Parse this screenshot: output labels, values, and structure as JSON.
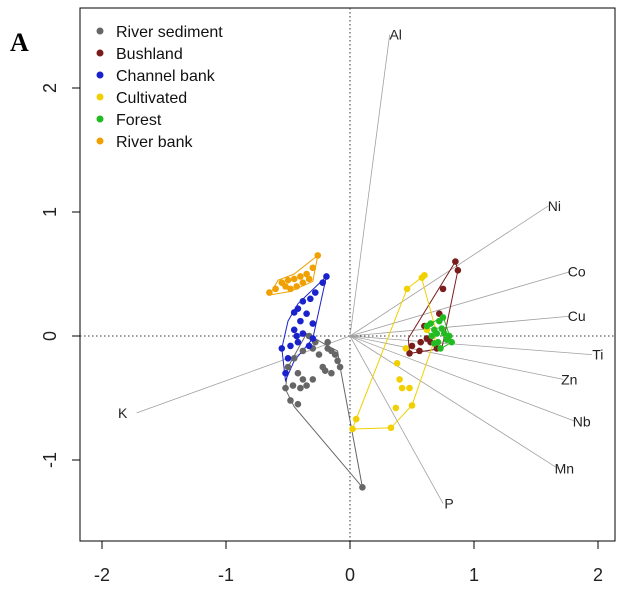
{
  "panel_label": "A",
  "chart_data": {
    "type": "scatter",
    "subtype": "pca-biplot",
    "title": "",
    "xlabel": "",
    "ylabel": "",
    "xlim": [
      -2.05,
      2.05
    ],
    "ylim": [
      -1.65,
      2.6
    ],
    "x_ticks": [
      -2,
      -1,
      0,
      1,
      2
    ],
    "y_ticks": [
      -1,
      0,
      1,
      2
    ],
    "grid": false,
    "legend_position": "top-left",
    "zero_lines": true,
    "loadings": [
      {
        "name": "Al",
        "x": 0.32,
        "y": 2.43
      },
      {
        "name": "Ni",
        "x": 1.6,
        "y": 1.05
      },
      {
        "name": "Co",
        "x": 1.78,
        "y": 0.52
      },
      {
        "name": "Cu",
        "x": 1.78,
        "y": 0.16
      },
      {
        "name": "Ti",
        "x": 1.95,
        "y": -0.15
      },
      {
        "name": "Zn",
        "x": 1.72,
        "y": -0.35
      },
      {
        "name": "Nb",
        "x": 1.82,
        "y": -0.69
      },
      {
        "name": "Mn",
        "x": 1.68,
        "y": -1.07
      },
      {
        "name": "P",
        "x": 0.75,
        "y": -1.35
      },
      {
        "name": "K",
        "x": -1.72,
        "y": -0.62
      }
    ],
    "series": [
      {
        "name": "River sediment",
        "color": "#666666",
        "points": [
          [
            -0.28,
            -0.05
          ],
          [
            -0.33,
            0.0
          ],
          [
            -0.3,
            -0.1
          ],
          [
            -0.38,
            -0.12
          ],
          [
            -0.45,
            -0.18
          ],
          [
            -0.5,
            -0.25
          ],
          [
            -0.42,
            -0.3
          ],
          [
            -0.38,
            -0.35
          ],
          [
            -0.46,
            -0.4
          ],
          [
            -0.4,
            -0.42
          ],
          [
            -0.52,
            -0.42
          ],
          [
            -0.48,
            -0.52
          ],
          [
            -0.42,
            -0.55
          ],
          [
            -0.35,
            -0.4
          ],
          [
            -0.3,
            -0.35
          ],
          [
            -0.22,
            -0.25
          ],
          [
            -0.25,
            -0.15
          ],
          [
            -0.18,
            -0.1
          ],
          [
            -0.15,
            -0.12
          ],
          [
            -0.12,
            -0.15
          ],
          [
            -0.1,
            -0.2
          ],
          [
            -0.15,
            -0.3
          ],
          [
            -0.2,
            -0.28
          ],
          [
            -0.08,
            -0.25
          ],
          [
            -0.18,
            -0.05
          ],
          [
            0.1,
            -1.22
          ]
        ],
        "hull": [
          [
            -0.35,
            0.02
          ],
          [
            -0.18,
            -0.08
          ],
          [
            -0.1,
            -0.12
          ],
          [
            -0.08,
            -0.25
          ],
          [
            0.1,
            -1.22
          ],
          [
            -0.45,
            -0.57
          ],
          [
            -0.52,
            -0.43
          ],
          [
            -0.5,
            -0.25
          ]
        ]
      },
      {
        "name": "Bushland",
        "color": "#7b1c1c",
        "points": [
          [
            0.85,
            0.6
          ],
          [
            0.87,
            0.53
          ],
          [
            0.75,
            0.38
          ],
          [
            0.72,
            0.18
          ],
          [
            0.6,
            0.08
          ],
          [
            0.62,
            -0.02
          ],
          [
            0.5,
            -0.08
          ],
          [
            0.57,
            -0.05
          ],
          [
            0.48,
            -0.14
          ],
          [
            0.56,
            -0.12
          ],
          [
            0.7,
            -0.1
          ],
          [
            0.65,
            -0.05
          ]
        ],
        "hull": [
          [
            0.85,
            0.6
          ],
          [
            0.87,
            0.53
          ],
          [
            0.74,
            -0.1
          ],
          [
            0.48,
            -0.14
          ],
          [
            0.47,
            -0.02
          ]
        ]
      },
      {
        "name": "Channel bank",
        "color": "#1a22cc",
        "points": [
          [
            -0.19,
            0.48
          ],
          [
            -0.22,
            0.43
          ],
          [
            -0.28,
            0.35
          ],
          [
            -0.32,
            0.3
          ],
          [
            -0.38,
            0.28
          ],
          [
            -0.42,
            0.22
          ],
          [
            -0.35,
            0.18
          ],
          [
            -0.3,
            0.1
          ],
          [
            -0.4,
            0.12
          ],
          [
            -0.45,
            0.05
          ],
          [
            -0.38,
            0.02
          ],
          [
            -0.3,
            -0.02
          ],
          [
            -0.42,
            -0.05
          ],
          [
            -0.48,
            -0.08
          ],
          [
            -0.55,
            -0.1
          ],
          [
            -0.5,
            -0.18
          ],
          [
            -0.52,
            -0.3
          ],
          [
            -0.43,
            0.0
          ],
          [
            -0.33,
            -0.08
          ],
          [
            -0.45,
            0.19
          ]
        ],
        "hull": [
          [
            -0.19,
            0.48
          ],
          [
            -0.3,
            -0.02
          ],
          [
            -0.45,
            -0.2
          ],
          [
            -0.52,
            -0.36
          ],
          [
            -0.55,
            -0.1
          ],
          [
            -0.5,
            0.12
          ],
          [
            -0.42,
            0.26
          ]
        ]
      },
      {
        "name": "Cultivated",
        "color": "#f0d000",
        "points": [
          [
            0.58,
            0.47
          ],
          [
            0.6,
            0.49
          ],
          [
            0.46,
            0.38
          ],
          [
            0.62,
            0.05
          ],
          [
            0.45,
            -0.1
          ],
          [
            0.38,
            -0.22
          ],
          [
            0.4,
            -0.35
          ],
          [
            0.42,
            -0.42
          ],
          [
            0.48,
            -0.42
          ],
          [
            0.5,
            -0.56
          ],
          [
            0.37,
            -0.58
          ],
          [
            0.05,
            -0.67
          ],
          [
            0.02,
            -0.75
          ],
          [
            0.33,
            -0.74
          ]
        ],
        "hull": [
          [
            0.6,
            0.49
          ],
          [
            0.58,
            0.46
          ],
          [
            0.7,
            0.02
          ],
          [
            0.5,
            -0.56
          ],
          [
            0.33,
            -0.74
          ],
          [
            0.02,
            -0.75
          ],
          [
            0.05,
            -0.67
          ],
          [
            0.46,
            0.38
          ]
        ]
      },
      {
        "name": "Forest",
        "color": "#22bb22",
        "points": [
          [
            0.62,
            0.08
          ],
          [
            0.65,
            0.1
          ],
          [
            0.68,
            0.05
          ],
          [
            0.7,
            0.02
          ],
          [
            0.72,
            0.12
          ],
          [
            0.75,
            0.15
          ],
          [
            0.74,
            0.06
          ],
          [
            0.76,
            0.02
          ],
          [
            0.8,
            0.0
          ],
          [
            0.78,
            -0.03
          ],
          [
            0.71,
            -0.05
          ],
          [
            0.73,
            -0.1
          ],
          [
            0.68,
            -0.06
          ],
          [
            0.82,
            -0.05
          ],
          [
            0.66,
            0.0
          ]
        ],
        "hull": [
          [
            0.62,
            0.08
          ],
          [
            0.75,
            0.16
          ],
          [
            0.82,
            -0.05
          ],
          [
            0.72,
            -0.11
          ],
          [
            0.66,
            -0.05
          ]
        ]
      },
      {
        "name": "River bank",
        "color": "#f0a000",
        "points": [
          [
            -0.26,
            0.65
          ],
          [
            -0.3,
            0.55
          ],
          [
            -0.35,
            0.5
          ],
          [
            -0.4,
            0.48
          ],
          [
            -0.45,
            0.46
          ],
          [
            -0.5,
            0.45
          ],
          [
            -0.52,
            0.4
          ],
          [
            -0.48,
            0.38
          ],
          [
            -0.43,
            0.4
          ],
          [
            -0.38,
            0.43
          ],
          [
            -0.6,
            0.38
          ],
          [
            -0.65,
            0.35
          ],
          [
            -0.33,
            0.46
          ],
          [
            -0.55,
            0.43
          ]
        ],
        "hull": [
          [
            -0.26,
            0.65
          ],
          [
            -0.3,
            0.44
          ],
          [
            -0.48,
            0.36
          ],
          [
            -0.65,
            0.33
          ],
          [
            -0.58,
            0.45
          ],
          [
            -0.45,
            0.5
          ]
        ]
      }
    ]
  }
}
